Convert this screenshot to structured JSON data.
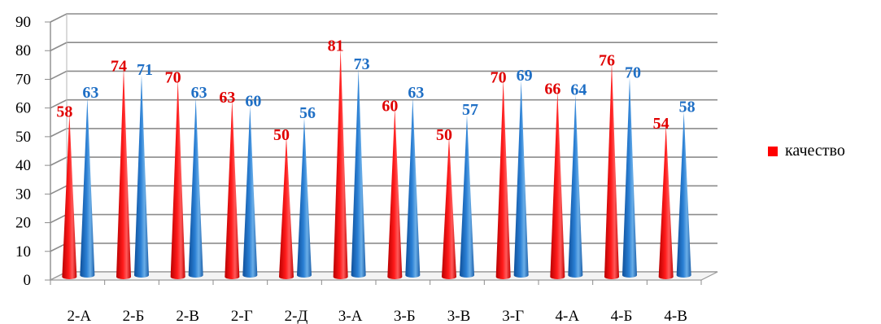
{
  "chart_data": {
    "type": "bar",
    "style": "3d-cone",
    "categories": [
      "2-А",
      "2-Б",
      "2-В",
      "2-Г",
      "2-Д",
      "3-А",
      "3-Б",
      "3-В",
      "3-Г",
      "4-А",
      "4-Б",
      "4-В"
    ],
    "series": [
      {
        "name": "качество",
        "color": "#ff0000",
        "label_color": "#e00000",
        "values": [
          58,
          74,
          70,
          63,
          50,
          81,
          60,
          50,
          70,
          66,
          76,
          54
        ]
      },
      {
        "name": "",
        "color": "#1f6fc5",
        "label_color": "#1f6fc5",
        "values": [
          63,
          71,
          63,
          60,
          56,
          73,
          63,
          57,
          69,
          64,
          70,
          58
        ]
      }
    ],
    "ylim": [
      0,
      90
    ],
    "yticks": [
      "0",
      "10",
      "20",
      "30",
      "40",
      "50",
      "60",
      "70",
      "80",
      "90"
    ],
    "grid": true,
    "legend": {
      "position": "right",
      "entries": [
        {
          "label": "качество",
          "color": "#ff0000"
        }
      ]
    }
  }
}
